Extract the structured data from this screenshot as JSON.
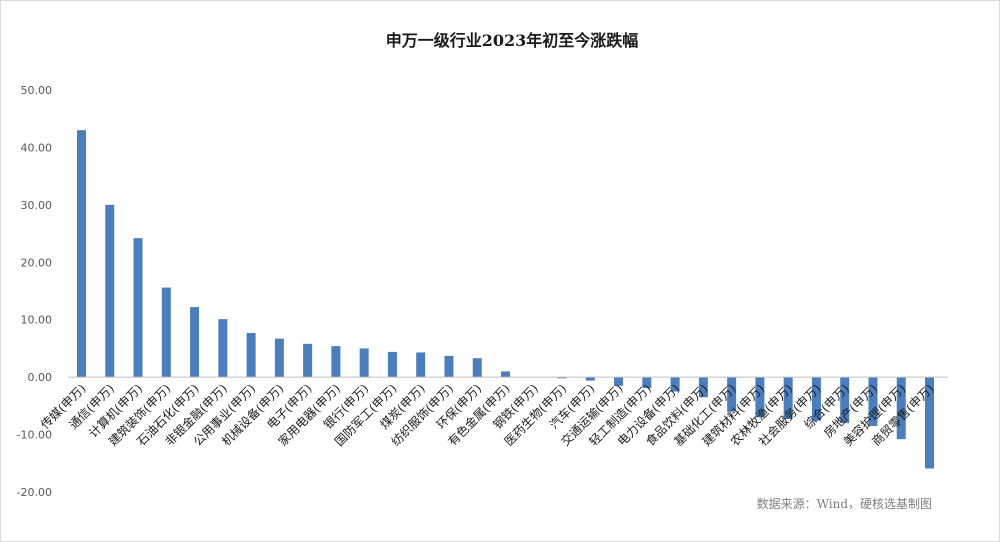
{
  "chart_data": {
    "type": "bar",
    "title": "申万一级行业2023年初至今涨跌幅",
    "xlabel": "",
    "ylabel": "",
    "ylim": [
      -20,
      50
    ],
    "yticks": [
      "50.00",
      "40.00",
      "30.00",
      "20.00",
      "10.00",
      "0.00",
      "-10.00",
      "-20.00"
    ],
    "ytick_values": [
      50,
      40,
      30,
      20,
      10,
      0,
      -10,
      -20
    ],
    "grid": false,
    "legend": "none",
    "bar_color": "#4a7ebf",
    "categories": [
      "传媒(申万)",
      "通信(申万)",
      "计算机(申万)",
      "建筑装饰(申万)",
      "石油石化(申万)",
      "非银金融(申万)",
      "公用事业(申万)",
      "机械设备(申万)",
      "电子(申万)",
      "家用电器(申万)",
      "银行(申万)",
      "国防军工(申万)",
      "煤炭(申万)",
      "纺织服饰(申万)",
      "环保(申万)",
      "有色金属(申万)",
      "钢铁(申万)",
      "医药生物(申万)",
      "汽车(申万)",
      "交通运输(申万)",
      "轻工制造(申万)",
      "电力设备(申万)",
      "食品饮料(申万)",
      "基础化工(申万)",
      "建筑材料(申万)",
      "农林牧渔(申万)",
      "社会服务(申万)",
      "综合(申万)",
      "房地产(申万)",
      "美容护理(申万)",
      "商贸零售(申万)"
    ],
    "values": [
      43.0,
      30.0,
      24.2,
      15.6,
      12.2,
      10.1,
      7.7,
      6.7,
      5.8,
      5.4,
      5.0,
      4.4,
      4.3,
      3.7,
      3.3,
      1.0,
      0.0,
      -0.2,
      -0.6,
      -1.5,
      -1.9,
      -2.5,
      -3.5,
      -6.0,
      -7.0,
      -7.3,
      -7.6,
      -8.0,
      -8.5,
      -10.8,
      -15.9
    ]
  },
  "source": "数据来源：Wind，硬核选基制图"
}
